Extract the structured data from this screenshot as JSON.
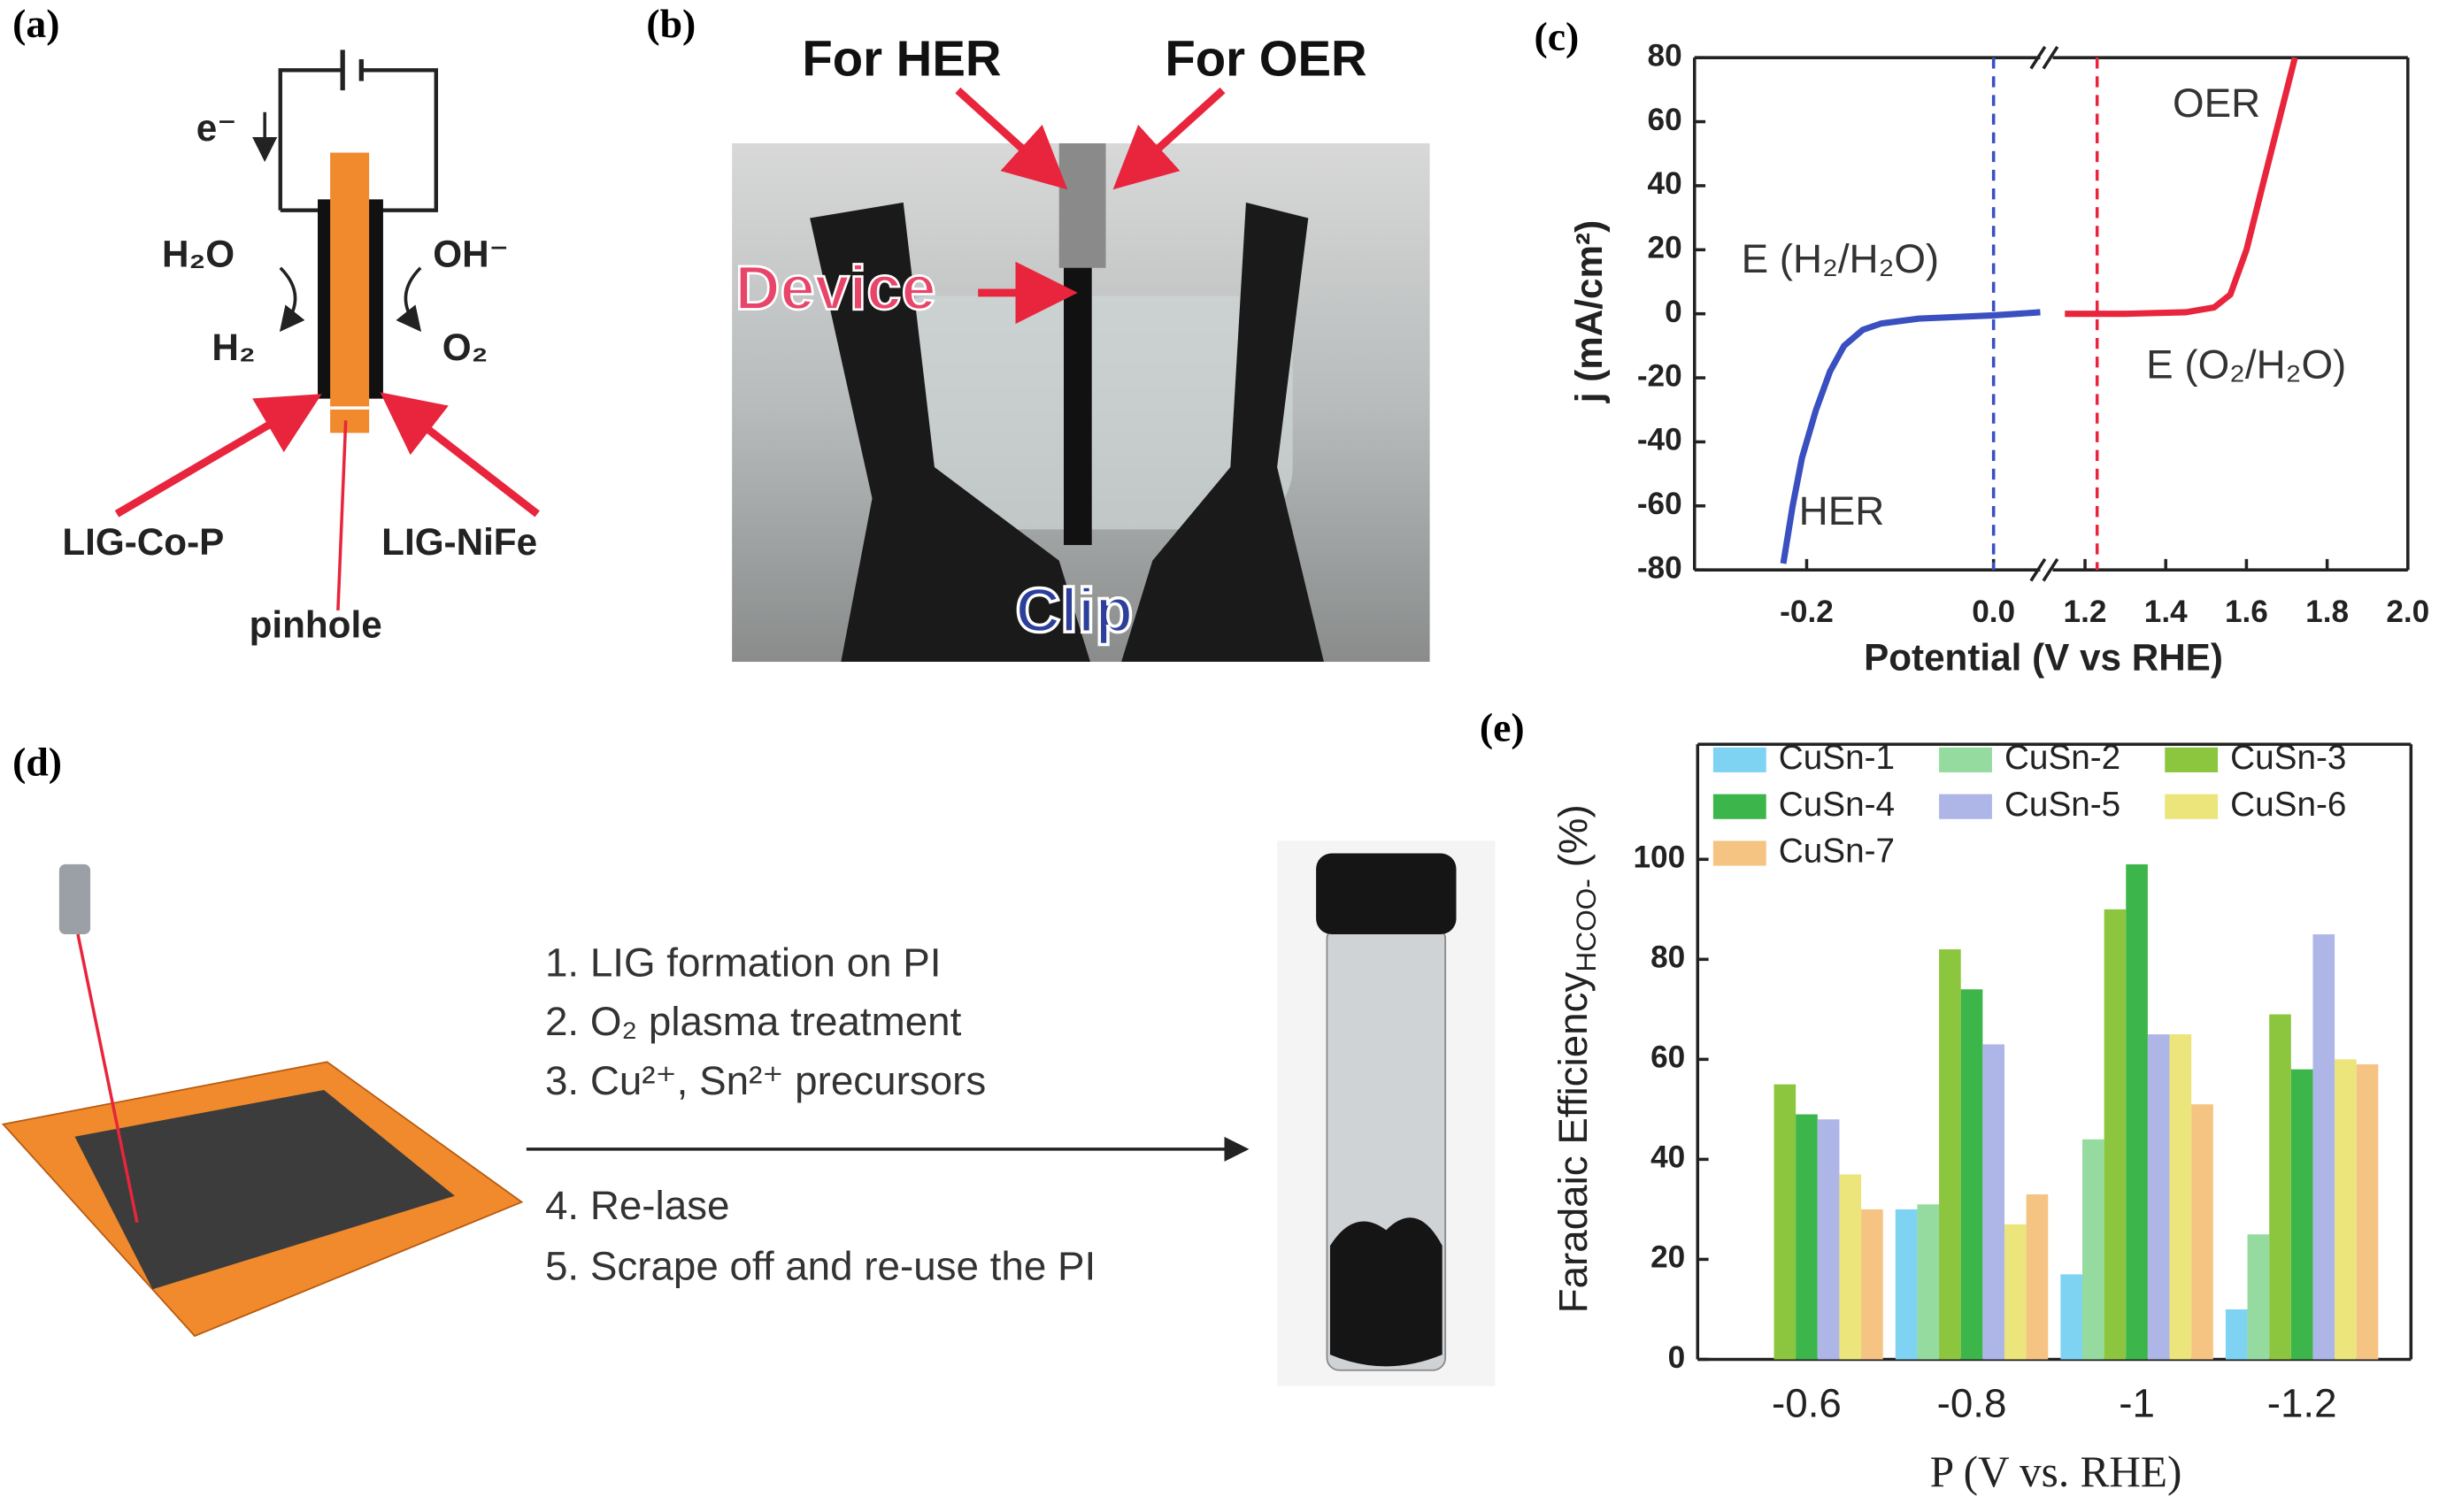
{
  "panels": {
    "a": {
      "label": "(a)",
      "electron": "e⁻",
      "h2o": "H₂O",
      "h2": "H₂",
      "oh": "OH⁻",
      "o2": "O₂",
      "left": "LIG-Co-P",
      "right": "LIG-NiFe",
      "pinhole": "pinhole"
    },
    "b": {
      "label": "(b)",
      "her": "For HER",
      "oer": "For OER",
      "device": "Device",
      "clip": "Clip"
    },
    "c": {
      "label": "(c)"
    },
    "d": {
      "label": "(d)",
      "steps": [
        "1. LIG formation on PI",
        "2. O₂ plasma treatment",
        "3. Cu²⁺, Sn²⁺ precursors",
        "4. Re-lase",
        "5. Scrape off and re-use the PI"
      ]
    },
    "e": {
      "label": "(e)"
    }
  },
  "chart_data": [
    {
      "type": "line",
      "xlabel": "Potential (V vs RHE)",
      "ylabel": "j (mA/cm²)",
      "segments": [
        {
          "xlim": [
            -0.32,
            0.05
          ],
          "xticks": [
            -0.2,
            {
              "value": 0,
              "label": "0.0"
            }
          ]
        },
        {
          "xlim": [
            1.12,
            2.0
          ],
          "xticks": [
            1.2,
            1.4,
            1.6,
            1.8,
            {
              "value": 2.0,
              "label": "2.0"
            }
          ]
        }
      ],
      "ylim": [
        -80,
        80
      ],
      "yticks": [
        -80,
        -60,
        -40,
        -20,
        0,
        20,
        40,
        60,
        80
      ],
      "series": [
        {
          "name": "HER",
          "color": "#3a4fc0",
          "x": [
            -0.225,
            -0.215,
            -0.205,
            -0.19,
            -0.175,
            -0.16,
            -0.14,
            -0.12,
            -0.08,
            0,
            0.05
          ],
          "values": [
            -78,
            -60,
            -45,
            -30,
            -18,
            -10,
            -5,
            -3,
            -1.5,
            -0.5,
            0.5
          ]
        },
        {
          "name": "OER",
          "color": "#e8253c",
          "x": [
            1.15,
            1.3,
            1.45,
            1.52,
            1.56,
            1.6,
            1.64,
            1.68,
            1.72
          ],
          "values": [
            0,
            0,
            0.5,
            2,
            6,
            20,
            40,
            60,
            80
          ]
        }
      ],
      "vlines": [
        {
          "x": 0,
          "color": "#3a4fc0",
          "label": "E (H₂/H₂O)"
        },
        {
          "x": 1.23,
          "color": "#e8253c",
          "label": "E (O₂/H₂O)"
        }
      ]
    },
    {
      "type": "bar",
      "xlabel": "P (V vs. RHE)",
      "ylabel": [
        "Faradaic Efficiency",
        "HCOO-",
        " (%)"
      ],
      "categories": [
        "-0.6",
        "-0.8",
        "-1",
        "-1.2"
      ],
      "ylim": [
        0,
        123
      ],
      "yticks": [
        0,
        20,
        40,
        60,
        80,
        100
      ],
      "series": [
        {
          "name": "CuSn-1",
          "color": "#7fd3f2",
          "values": [
            null,
            30,
            17,
            10
          ]
        },
        {
          "name": "CuSn-2",
          "color": "#95dba0",
          "values": [
            null,
            31,
            44,
            25
          ]
        },
        {
          "name": "CuSn-3",
          "color": "#8cc63f",
          "values": [
            55,
            82,
            90,
            69
          ]
        },
        {
          "name": "CuSn-4",
          "color": "#3cb54a",
          "values": [
            49,
            74,
            99,
            58
          ]
        },
        {
          "name": "CuSn-5",
          "color": "#aeb6e8",
          "values": [
            48,
            63,
            65,
            85
          ]
        },
        {
          "name": "CuSn-6",
          "color": "#ebe57c",
          "values": [
            37,
            27,
            65,
            60
          ]
        },
        {
          "name": "CuSn-7",
          "color": "#f5c482",
          "values": [
            30,
            33,
            51,
            59
          ]
        }
      ]
    }
  ]
}
